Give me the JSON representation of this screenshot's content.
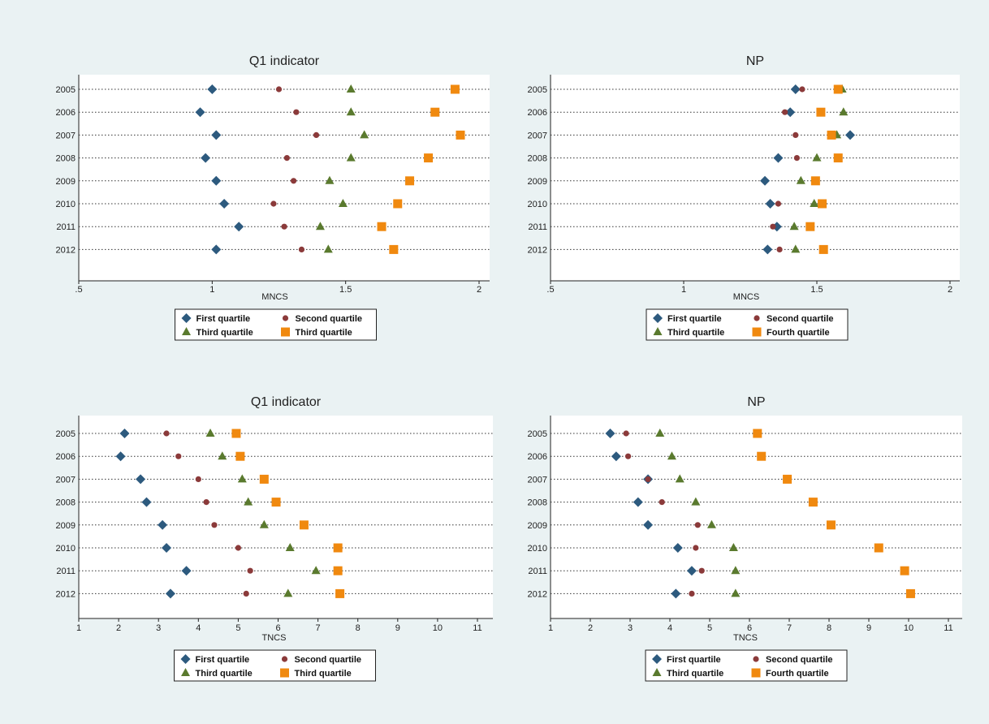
{
  "colors": {
    "background": "#eaf2f3",
    "panel": "#ffffff",
    "first_quartile": "#2d5a7e",
    "second_quartile": "#8b3a3a",
    "third_quartile": "#5a7a2e",
    "fourth_quartile": "#f0890f"
  },
  "chart_data": [
    {
      "type": "scatter",
      "title": "Q1 indicator",
      "xlabel": "MNCS",
      "categories": [
        "2005",
        "2006",
        "2007",
        "2008",
        "2009",
        "2010",
        "2011",
        "2012"
      ],
      "xlim": [
        0.5,
        2.03
      ],
      "xticks": [
        ".5",
        "1",
        "1.5",
        "2"
      ],
      "grid": "dotted horizontal",
      "legend": "bottom",
      "series": [
        {
          "name": "First quartile",
          "marker": "diamond",
          "values": [
            1.0,
            0.955,
            1.015,
            0.975,
            1.015,
            1.045,
            1.1,
            1.015
          ]
        },
        {
          "name": "Second quartile",
          "marker": "circle",
          "values": [
            1.25,
            1.315,
            1.39,
            1.28,
            1.305,
            1.23,
            1.27,
            1.335
          ]
        },
        {
          "name": "Third quartile",
          "marker": "triangle",
          "values": [
            1.52,
            1.52,
            1.57,
            1.52,
            1.44,
            1.49,
            1.405,
            1.435
          ]
        },
        {
          "name": "Third quartile",
          "marker": "square",
          "values": [
            1.91,
            1.835,
            1.93,
            1.81,
            1.74,
            1.695,
            1.635,
            1.68
          ]
        }
      ]
    },
    {
      "type": "scatter",
      "title": "NP",
      "xlabel": "MNCS",
      "categories": [
        "2005",
        "2006",
        "2007",
        "2008",
        "2009",
        "2010",
        "2011",
        "2012"
      ],
      "xlim": [
        0.5,
        2.03
      ],
      "xticks": [
        ".5",
        "1",
        "1.5",
        "2"
      ],
      "grid": "dotted horizontal",
      "legend": "bottom",
      "series": [
        {
          "name": "First quartile",
          "marker": "diamond",
          "values": [
            1.42,
            1.4,
            1.625,
            1.355,
            1.305,
            1.325,
            1.35,
            1.315
          ]
        },
        {
          "name": "Second quartile",
          "marker": "circle",
          "values": [
            1.445,
            1.38,
            1.42,
            1.425,
            1.495,
            1.355,
            1.335,
            1.36
          ]
        },
        {
          "name": "Third quartile",
          "marker": "triangle",
          "values": [
            1.595,
            1.6,
            1.575,
            1.5,
            1.44,
            1.49,
            1.415,
            1.42
          ]
        },
        {
          "name": "Fourth quartile",
          "marker": "square",
          "values": [
            1.58,
            1.515,
            1.555,
            1.58,
            1.495,
            1.52,
            1.475,
            1.525
          ]
        }
      ]
    },
    {
      "type": "scatter",
      "title": "Q1 indicator",
      "xlabel": "TNCS",
      "categories": [
        "2005",
        "2006",
        "2007",
        "2008",
        "2009",
        "2010",
        "2011",
        "2012"
      ],
      "xlim": [
        1,
        11.2
      ],
      "xticks": [
        "1",
        "2",
        "3",
        "4",
        "5",
        "6",
        "7",
        "8",
        "9",
        "10",
        "11"
      ],
      "grid": "dotted horizontal",
      "legend": "bottom",
      "series": [
        {
          "name": "First quartile",
          "marker": "diamond",
          "values": [
            2.15,
            2.05,
            2.55,
            2.7,
            3.1,
            3.2,
            3.7,
            3.3
          ]
        },
        {
          "name": "Second quartile",
          "marker": "circle",
          "values": [
            3.2,
            3.5,
            4.0,
            4.2,
            4.4,
            5.0,
            5.3,
            5.2
          ]
        },
        {
          "name": "Third quartile",
          "marker": "triangle",
          "values": [
            4.3,
            4.6,
            5.1,
            5.25,
            5.65,
            6.3,
            6.95,
            6.25
          ]
        },
        {
          "name": "Third quartile",
          "marker": "square",
          "values": [
            4.95,
            5.05,
            5.65,
            5.95,
            6.65,
            7.5,
            7.5,
            7.55
          ]
        }
      ]
    },
    {
      "type": "scatter",
      "title": "NP",
      "xlabel": "TNCS",
      "categories": [
        "2005",
        "2006",
        "2007",
        "2008",
        "2009",
        "2010",
        "2011",
        "2012"
      ],
      "xlim": [
        1,
        11.2
      ],
      "xticks": [
        "1",
        "2",
        "3",
        "4",
        "5",
        "6",
        "7",
        "8",
        "9",
        "10",
        "11"
      ],
      "grid": "dotted horizontal",
      "legend": "bottom",
      "series": [
        {
          "name": "First quartile",
          "marker": "diamond",
          "values": [
            2.5,
            2.65,
            3.45,
            3.2,
            3.45,
            4.2,
            4.55,
            4.15
          ]
        },
        {
          "name": "Second quartile",
          "marker": "circle",
          "values": [
            2.9,
            2.95,
            3.45,
            3.8,
            4.7,
            4.65,
            4.8,
            4.55
          ]
        },
        {
          "name": "Third quartile",
          "marker": "triangle",
          "values": [
            3.75,
            4.05,
            4.25,
            4.65,
            5.05,
            5.6,
            5.65,
            5.65
          ]
        },
        {
          "name": "Fourth quartile",
          "marker": "square",
          "values": [
            6.2,
            6.3,
            6.95,
            7.6,
            8.05,
            9.25,
            9.9,
            10.05
          ]
        }
      ]
    }
  ]
}
